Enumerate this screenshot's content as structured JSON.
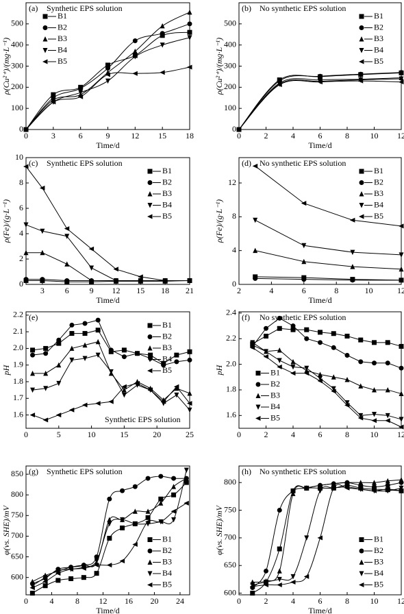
{
  "chart_data": [
    {
      "type": "line",
      "smooth": true,
      "panel_label": "(a)",
      "title": "Synthetic EPS solution",
      "title_position": "top",
      "x_label": "Time/d",
      "y_label": "ρ(Cu²⁺)/(mg·L⁻¹)",
      "legend": "upper left",
      "x": [
        0,
        3,
        6,
        9,
        12,
        15,
        18
      ],
      "xlim": [
        0,
        18
      ],
      "xticks": [
        0,
        3,
        6,
        9,
        12,
        15,
        18
      ],
      "ylim": [
        0,
        600
      ],
      "yticks": [
        0,
        100,
        200,
        300,
        400,
        500
      ],
      "series": [
        {
          "name": "B1",
          "marker": "square",
          "color": "#000000",
          "values": [
            0,
            165,
            200,
            305,
            350,
            445,
            460
          ]
        },
        {
          "name": "B2",
          "marker": "circle",
          "color": "#000000",
          "values": [
            0,
            150,
            195,
            290,
            420,
            455,
            500
          ]
        },
        {
          "name": "B3",
          "marker": "up",
          "color": "#000000",
          "values": [
            0,
            140,
            165,
            270,
            370,
            490,
            555
          ]
        },
        {
          "name": "B4",
          "marker": "down",
          "color": "#000000",
          "values": [
            0,
            130,
            175,
            230,
            345,
            400,
            435
          ]
        },
        {
          "name": "B5",
          "marker": "left",
          "color": "#000000",
          "values": [
            0,
            130,
            155,
            260,
            265,
            270,
            295
          ]
        }
      ]
    },
    {
      "type": "line",
      "smooth": true,
      "panel_label": "(b)",
      "title": "No synthetic EPS solution",
      "title_position": "top",
      "x_label": "Time/d",
      "y_label": "ρ(Cu²⁺)/(mg·L⁻¹)",
      "legend": "upper right",
      "x": [
        0,
        3,
        6,
        9,
        12
      ],
      "xlim": [
        0,
        12
      ],
      "xticks": [
        0,
        2,
        4,
        6,
        8,
        10,
        12
      ],
      "ylim": [
        0,
        600
      ],
      "yticks": [
        0,
        100,
        200,
        300,
        400,
        500
      ],
      "series": [
        {
          "name": "B1",
          "marker": "square",
          "color": "#000000",
          "values": [
            0,
            235,
            250,
            260,
            268
          ]
        },
        {
          "name": "B2",
          "marker": "circle",
          "color": "#000000",
          "values": [
            0,
            230,
            252,
            262,
            270
          ]
        },
        {
          "name": "B3",
          "marker": "up",
          "color": "#000000",
          "values": [
            0,
            220,
            235,
            238,
            245
          ]
        },
        {
          "name": "B4",
          "marker": "down",
          "color": "#000000",
          "values": [
            0,
            215,
            228,
            235,
            240
          ]
        },
        {
          "name": "B5",
          "marker": "left",
          "color": "#000000",
          "values": [
            0,
            212,
            225,
            230,
            225
          ]
        }
      ]
    },
    {
      "type": "line",
      "smooth": false,
      "panel_label": "(c)",
      "title": "Synthetic EPS solution",
      "title_position": "top",
      "x_label": "Time/d",
      "y_label": "ρ(Fe)/(g·L⁻¹)",
      "legend": "upper right",
      "x": [
        1,
        3,
        6,
        9,
        12,
        15,
        18,
        21
      ],
      "xlim": [
        1,
        21
      ],
      "xticks": [
        3,
        6,
        9,
        12,
        15,
        18,
        21
      ],
      "ylim": [
        0,
        10
      ],
      "yticks": [
        0,
        2,
        4,
        6,
        8,
        10
      ],
      "series": [
        {
          "name": "B1",
          "marker": "square",
          "color": "#000000",
          "values": [
            0.3,
            0.3,
            0.2,
            0.2,
            0.25,
            0.25,
            0.25,
            0.3
          ]
        },
        {
          "name": "B2",
          "marker": "circle",
          "color": "#000000",
          "values": [
            0.4,
            0.4,
            0.3,
            0.3,
            0.3,
            0.3,
            0.3,
            0.3
          ]
        },
        {
          "name": "B3",
          "marker": "up",
          "color": "#000000",
          "values": [
            2.5,
            2.5,
            1.6,
            0.3,
            0.3,
            0.3,
            0.3,
            0.3
          ]
        },
        {
          "name": "B4",
          "marker": "down",
          "color": "#000000",
          "values": [
            4.7,
            4.2,
            3.8,
            1.3,
            0.3,
            0.3,
            0.3,
            0.3
          ]
        },
        {
          "name": "B5",
          "marker": "left",
          "color": "#000000",
          "values": [
            9.3,
            7.6,
            4.4,
            2.8,
            1.2,
            0.6,
            0.3,
            0.3
          ]
        }
      ]
    },
    {
      "type": "line",
      "smooth": false,
      "panel_label": "(d)",
      "title": "No synthetic EPS solution",
      "title_position": "top",
      "x_label": "Time/d",
      "y_label": "ρ(Fe)/(g·L⁻¹)",
      "legend": "upper right",
      "x": [
        3,
        6,
        9,
        12
      ],
      "xlim": [
        2,
        12
      ],
      "xticks": [
        2,
        4,
        6,
        8,
        10,
        12
      ],
      "ylim": [
        0,
        15
      ],
      "yticks": [
        0,
        4,
        8,
        12
      ],
      "series": [
        {
          "name": "B1",
          "marker": "square",
          "color": "#000000",
          "values": [
            0.9,
            0.8,
            0.6,
            0.5
          ]
        },
        {
          "name": "B2",
          "marker": "circle",
          "color": "#000000",
          "values": [
            0.7,
            0.6,
            0.5,
            0.5
          ]
        },
        {
          "name": "B3",
          "marker": "up",
          "color": "#000000",
          "values": [
            4.0,
            2.7,
            2.1,
            1.8
          ]
        },
        {
          "name": "B4",
          "marker": "down",
          "color": "#000000",
          "values": [
            7.6,
            4.6,
            3.8,
            3.5
          ]
        },
        {
          "name": "B5",
          "marker": "left",
          "color": "#000000",
          "values": [
            14,
            9.6,
            7.6,
            6.9
          ]
        }
      ]
    },
    {
      "type": "line",
      "smooth": false,
      "panel_label": "(e)",
      "title": "Synthetic EPS solution",
      "title_position": "bottom",
      "y_label": "pH",
      "legend": "upper right",
      "x": [
        1,
        3,
        5,
        7,
        9,
        11,
        13,
        15,
        17,
        19,
        21,
        23,
        25
      ],
      "xlim": [
        0,
        25
      ],
      "xticks": [
        0,
        5,
        10,
        15,
        20,
        25
      ],
      "ylim": [
        1.52,
        2.22
      ],
      "yticks": [
        1.6,
        1.7,
        1.8,
        1.9,
        {
          "value": 2,
          "label": "2.0"
        },
        2.1,
        2.2
      ],
      "series": [
        {
          "name": "B1",
          "marker": "square",
          "color": "#000000",
          "values": [
            1.99,
            2.0,
            2.03,
            2.09,
            2.09,
            2.11,
            1.98,
            1.99,
            1.97,
            1.96,
            1.91,
            1.96,
            1.98
          ]
        },
        {
          "name": "B2",
          "marker": "circle",
          "color": "#000000",
          "values": [
            1.96,
            1.97,
            2.05,
            2.14,
            2.15,
            2.17,
            1.99,
            1.95,
            1.97,
            1.94,
            1.9,
            1.92,
            1.93
          ]
        },
        {
          "name": "B3",
          "marker": "up",
          "color": "#000000",
          "values": [
            1.85,
            1.85,
            1.9,
            2.0,
            2.02,
            2.04,
            1.85,
            1.75,
            1.8,
            1.76,
            1.69,
            1.76,
            1.73
          ]
        },
        {
          "name": "B4",
          "marker": "down",
          "color": "#000000",
          "values": [
            1.75,
            1.76,
            1.79,
            1.93,
            1.94,
            1.96,
            1.86,
            1.72,
            1.78,
            1.75,
            1.67,
            1.72,
            1.63
          ]
        },
        {
          "name": "B5",
          "marker": "left",
          "color": "#000000",
          "values": [
            1.6,
            1.57,
            1.6,
            1.63,
            1.66,
            1.67,
            1.68,
            1.77,
            1.79,
            1.75,
            1.68,
            1.77,
            1.67
          ]
        }
      ]
    },
    {
      "type": "line",
      "smooth": false,
      "panel_label": "(f)",
      "title": "No synthetic EPS solution",
      "title_position": "top",
      "y_label": "pH",
      "legend": "lower left",
      "x": [
        1,
        2,
        3,
        4,
        5,
        6,
        7,
        8,
        9,
        10,
        11,
        12
      ],
      "xlim": [
        0,
        12
      ],
      "xticks": [
        0,
        2,
        4,
        6,
        8,
        10,
        12
      ],
      "ylim": [
        1.5,
        2.41
      ],
      "yticks": [
        1.6,
        1.8,
        {
          "value": 2,
          "label": "2.0"
        },
        2.2,
        2.4
      ],
      "series": [
        {
          "name": "B1",
          "marker": "square",
          "color": "#000000",
          "values": [
            2.16,
            2.22,
            2.28,
            2.27,
            2.27,
            2.25,
            2.24,
            2.22,
            2.19,
            2.17,
            2.17,
            2.14
          ]
        },
        {
          "name": "B2",
          "marker": "circle",
          "color": "#000000",
          "values": [
            2.14,
            2.28,
            2.36,
            2.3,
            2.2,
            2.17,
            2.13,
            2.07,
            2.02,
            2.01,
            2.01,
            1.97
          ]
        },
        {
          "name": "B3",
          "marker": "up",
          "color": "#000000",
          "values": [
            2.15,
            2.1,
            2.11,
            2.02,
            1.95,
            1.92,
            1.9,
            1.88,
            1.83,
            1.8,
            1.8,
            1.77
          ]
        },
        {
          "name": "B4",
          "marker": "down",
          "color": "#000000",
          "values": [
            2.17,
            2.1,
            2.03,
            1.98,
            1.97,
            1.89,
            1.81,
            1.7,
            1.6,
            1.61,
            1.6,
            1.57
          ]
        },
        {
          "name": "B5",
          "marker": "left",
          "color": "#000000",
          "values": [
            2.13,
            2.06,
            1.98,
            1.93,
            1.93,
            1.87,
            1.79,
            1.68,
            1.58,
            1.56,
            1.56,
            1.51
          ]
        }
      ]
    },
    {
      "type": "line",
      "smooth": true,
      "panel_label": "(g)",
      "title": "Synthetic EPS solution",
      "title_position": "top",
      "x_label": "Time/d",
      "y_label": "φ(vs. SHE)/mV",
      "legend": "lower right",
      "x": [
        1,
        3,
        5,
        7,
        9,
        11,
        13,
        15,
        17,
        19,
        21,
        23,
        25
      ],
      "xlim": [
        0,
        25.5
      ],
      "xticks": [
        0,
        4,
        8,
        12,
        16,
        20,
        24
      ],
      "ylim": [
        558,
        870
      ],
      "yticks": [
        600,
        650,
        700,
        750,
        800,
        850
      ],
      "series": [
        {
          "name": "B1",
          "marker": "square",
          "color": "#000000",
          "values": [
            562,
            580,
            593,
            597,
            600,
            610,
            695,
            720,
            730,
            745,
            790,
            800,
            830
          ]
        },
        {
          "name": "B2",
          "marker": "circle",
          "color": "#000000",
          "values": [
            585,
            598,
            620,
            625,
            630,
            650,
            790,
            810,
            820,
            840,
            845,
            840,
            840
          ]
        },
        {
          "name": "B3",
          "marker": "up",
          "color": "#000000",
          "values": [
            590,
            605,
            615,
            625,
            630,
            635,
            740,
            740,
            760,
            760,
            780,
            820,
            840
          ]
        },
        {
          "name": "B4",
          "marker": "down",
          "color": "#000000",
          "values": [
            580,
            600,
            617,
            620,
            625,
            640,
            730,
            740,
            730,
            730,
            735,
            740,
            860
          ]
        },
        {
          "name": "B5",
          "marker": "left",
          "color": "#000000",
          "values": [
            575,
            590,
            610,
            620,
            622,
            630,
            630,
            640,
            680,
            735,
            735,
            760,
            780
          ]
        }
      ]
    },
    {
      "type": "line",
      "smooth": true,
      "panel_label": "(h)",
      "title": "No synthetic EPS solution",
      "title_position": "top",
      "x_label": "Time/d",
      "y_label": "φ(vs. SHE)/mV",
      "legend": "lower right",
      "x": [
        1,
        2,
        3,
        4,
        5,
        6,
        7,
        8,
        9,
        10,
        11,
        12
      ],
      "xlim": [
        0,
        12
      ],
      "xticks": [
        0,
        2,
        4,
        6,
        8,
        10,
        12
      ],
      "ylim": [
        597,
        830
      ],
      "yticks": [
        600,
        650,
        700,
        750,
        800
      ],
      "series": [
        {
          "name": "B1",
          "marker": "square",
          "color": "#000000",
          "values": [
            600,
            620,
            680,
            785,
            790,
            790,
            790,
            795,
            790,
            788,
            787,
            785
          ]
        },
        {
          "name": "B2",
          "marker": "circle",
          "color": "#000000",
          "values": [
            610,
            640,
            750,
            785,
            790,
            795,
            798,
            800,
            795,
            792,
            795,
            800
          ]
        },
        {
          "name": "B3",
          "marker": "up",
          "color": "#000000",
          "values": [
            620,
            622,
            640,
            780,
            790,
            795,
            798,
            800,
            800,
            800,
            803,
            805
          ]
        },
        {
          "name": "B4",
          "marker": "down",
          "color": "#000000",
          "values": [
            615,
            620,
            625,
            630,
            700,
            785,
            790,
            792,
            788,
            785,
            785,
            790
          ]
        },
        {
          "name": "B5",
          "marker": "left",
          "color": "#000000",
          "values": [
            612,
            615,
            615,
            620,
            630,
            700,
            790,
            790,
            788,
            785,
            788,
            785
          ]
        }
      ]
    }
  ]
}
